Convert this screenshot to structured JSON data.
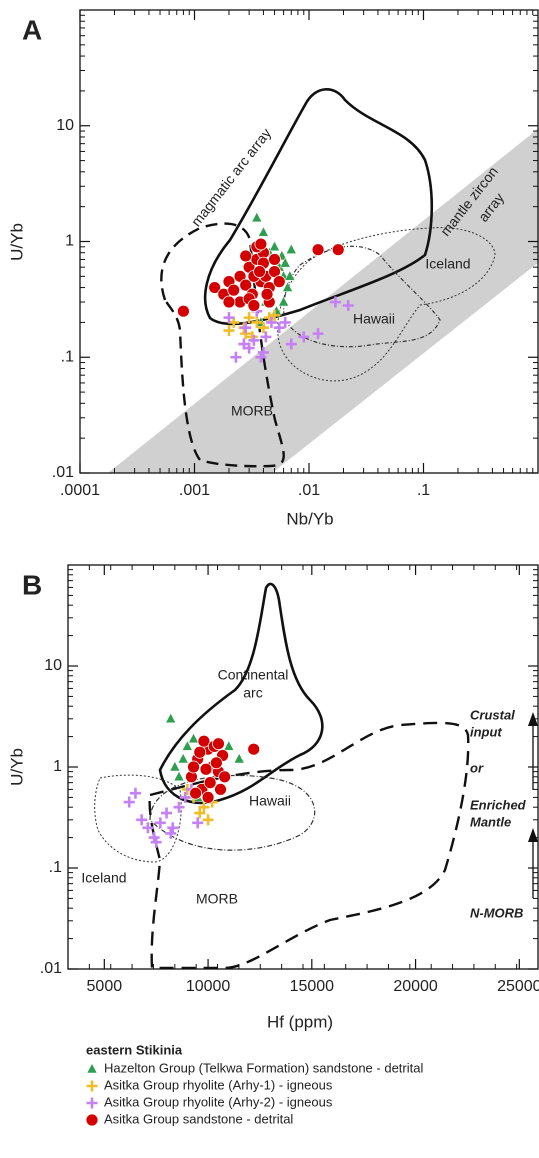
{
  "chart_data": [
    {
      "type": "scatter",
      "panel_label": "A",
      "xlabel": "Nb/Yb",
      "ylabel": "U/Yb",
      "xscale": "log",
      "yscale": "log",
      "xlim": [
        0.0001,
        1
      ],
      "ylim": [
        0.01,
        100
      ],
      "xticks": [
        {
          "value": 0.0001,
          "label": ".0001"
        },
        {
          "value": 0.001,
          "label": ".001"
        },
        {
          "value": 0.01,
          "label": ".01"
        },
        {
          "value": 0.1,
          "label": ".1"
        }
      ],
      "yticks": [
        {
          "value": 0.01,
          "label": ".01"
        },
        {
          "value": 0.1,
          "label": ".1"
        },
        1,
        10
      ],
      "annotations": [
        "magmatic arc array",
        "mantle zircon",
        "array",
        "Iceland",
        "Hawaii",
        "MORB"
      ],
      "series": [
        {
          "marker": "triangle",
          "color": "#2e9e4f",
          "x": [
            0.0035,
            0.004,
            0.0045,
            0.005,
            0.0055,
            0.006,
            0.0065,
            0.007,
            0.0042,
            0.0052,
            0.006,
            0.0048,
            0.0058,
            0.0068,
            0.0038,
            0.0062
          ],
          "values": [
            1.6,
            1.2,
            0.8,
            0.9,
            0.6,
            0.5,
            0.4,
            0.85,
            0.3,
            0.25,
            0.3,
            0.55,
            0.75,
            0.5,
            0.2,
            0.65
          ]
        },
        {
          "marker": "plus",
          "color": "#f0bd2a",
          "x": [
            0.002,
            0.0022,
            0.0027,
            0.003,
            0.0035,
            0.004,
            0.0045,
            0.005,
            0.0028,
            0.0032
          ],
          "values": [
            0.17,
            0.2,
            0.18,
            0.22,
            0.2,
            0.18,
            0.22,
            0.23,
            0.16,
            0.15
          ]
        },
        {
          "marker": "plus",
          "color": "#c680f5",
          "x": [
            0.002,
            0.0023,
            0.0027,
            0.003,
            0.0033,
            0.0038,
            0.0042,
            0.0047,
            0.0055,
            0.0062,
            0.007,
            0.009,
            0.012,
            0.017,
            0.022,
            0.0035,
            0.0028,
            0.004
          ],
          "values": [
            0.22,
            0.1,
            0.13,
            0.12,
            0.14,
            0.1,
            0.15,
            0.2,
            0.18,
            0.2,
            0.13,
            0.15,
            0.16,
            0.3,
            0.28,
            0.25,
            0.18,
            0.11
          ]
        },
        {
          "marker": "circle",
          "color": "#d40000",
          "x": [
            0.0008,
            0.0015,
            0.0018,
            0.002,
            0.0022,
            0.0025,
            0.0028,
            0.003,
            0.0032,
            0.0035,
            0.0038,
            0.004,
            0.0042,
            0.0045,
            0.005,
            0.0055,
            0.0025,
            0.003,
            0.0035,
            0.004,
            0.0045,
            0.002,
            0.0028,
            0.0033,
            0.0038,
            0.0043,
            0.005,
            0.012,
            0.018,
            0.0033,
            0.0037
          ],
          "values": [
            0.25,
            0.4,
            0.35,
            0.45,
            0.38,
            0.5,
            0.42,
            0.6,
            0.35,
            0.7,
            0.45,
            0.8,
            0.5,
            0.4,
            0.55,
            0.45,
            0.3,
            0.32,
            0.9,
            0.65,
            0.3,
            0.3,
            0.75,
            0.5,
            0.95,
            0.35,
            0.7,
            0.85,
            0.85,
            0.28,
            0.55
          ]
        }
      ]
    },
    {
      "type": "scatter",
      "panel_label": "B",
      "xlabel": "Hf (ppm)",
      "ylabel": "U/Yb",
      "xscale": "linear",
      "yscale": "log",
      "xlim": [
        3250,
        25900
      ],
      "ylim": [
        0.01,
        100
      ],
      "xticks": [
        5000,
        10000,
        15000,
        20000,
        25000
      ],
      "yticks": [
        {
          "value": 0.01,
          "label": ".01"
        },
        {
          "value": 0.1,
          "label": ".1"
        },
        1,
        10
      ],
      "annotations": [
        "Continental",
        "arc",
        "Hawaii",
        "Iceland",
        "MORB",
        "Crustal",
        "input",
        "or",
        "Enriched",
        "Mantle",
        "N-MORB"
      ],
      "legend_title": "eastern Stikinia",
      "series": [
        {
          "name": "Hazelton Group (Telkwa Formation) sandstone - detrital",
          "marker": "triangle",
          "color": "#2e9e4f",
          "x": [
            8200,
            8400,
            8600,
            9000,
            9300,
            11000,
            11500,
            8800,
            9500
          ],
          "values": [
            3.0,
            1.0,
            0.8,
            1.6,
            1.9,
            1.6,
            1.2,
            1.2,
            0.5
          ]
        },
        {
          "name": "Asitka Group rhyolite (Arhy-1) - igneous",
          "marker": "plus",
          "color": "#f0bd2a",
          "x": [
            9000,
            9300,
            9600,
            9800,
            10000,
            10200,
            9500
          ],
          "values": [
            0.6,
            0.5,
            0.35,
            0.4,
            0.3,
            0.45,
            0.55
          ]
        },
        {
          "name": "Asitka Group rhyolite (Arhy-2) - igneous",
          "marker": "plus",
          "color": "#c680f5",
          "x": [
            6200,
            6800,
            7100,
            7400,
            7700,
            8000,
            8300,
            8600,
            8900,
            9200,
            7500,
            8200,
            6500,
            9500
          ],
          "values": [
            0.45,
            0.3,
            0.25,
            0.2,
            0.28,
            0.35,
            0.25,
            0.4,
            0.5,
            0.6,
            0.18,
            0.22,
            0.55,
            0.28
          ]
        },
        {
          "name": "Asitka Group sandstone - detrital",
          "marker": "circle",
          "color": "#d40000",
          "x": [
            9200,
            9500,
            9700,
            10000,
            10200,
            10500,
            10700,
            9400,
            9800,
            10100,
            10400,
            10600,
            9600,
            9900,
            10300,
            10800,
            12200,
            9300,
            10000,
            10500
          ],
          "values": [
            0.8,
            1.2,
            0.6,
            1.5,
            1.0,
            0.9,
            1.3,
            0.55,
            1.8,
            0.7,
            1.1,
            0.6,
            1.4,
            0.95,
            1.6,
            0.8,
            1.5,
            1.0,
            0.5,
            1.7
          ]
        }
      ]
    }
  ]
}
